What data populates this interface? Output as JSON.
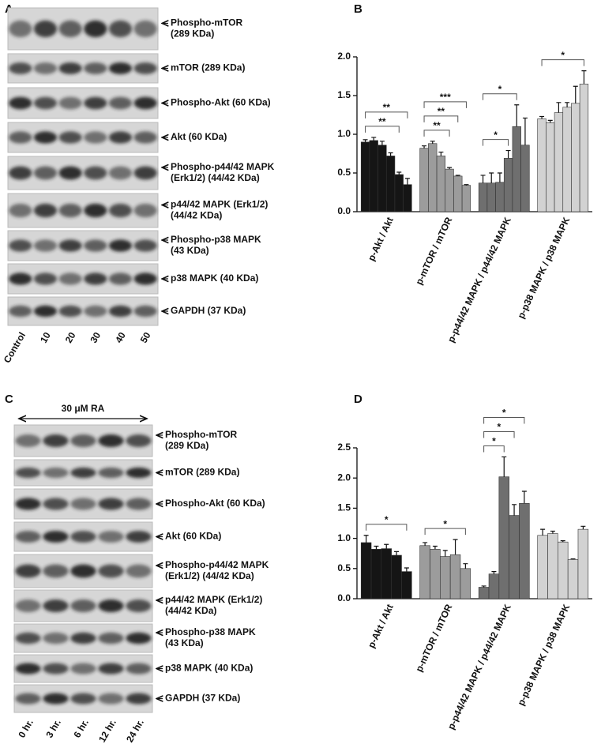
{
  "panels": {
    "a": "A",
    "b": "B",
    "c": "C",
    "d": "D"
  },
  "blot_a": {
    "labels": [
      [
        "Phospho-mTOR",
        "(289 KDa)"
      ],
      [
        "mTOR (289 KDa)"
      ],
      [
        "Phospho-Akt (60 KDa)"
      ],
      [
        "Akt (60 KDa)"
      ],
      [
        "Phospho-p44/42 MAPK",
        "(Erk1/2) (44/42 KDa)"
      ],
      [
        "p44/42 MAPK (Erk1/2)",
        "(44/42 KDa)"
      ],
      [
        "Phospho-p38 MAPK",
        "(43 KDa)"
      ],
      [
        "p38 MAPK (40 KDa)"
      ],
      [
        "GAPDH (37 KDa)"
      ]
    ],
    "lanes": [
      "Control",
      "10",
      "20",
      "30",
      "40",
      "50"
    ]
  },
  "blot_c": {
    "header": "30 μM RA",
    "labels": [
      [
        "Phospho-mTOR",
        "(289 KDa)"
      ],
      [
        "mTOR (289 KDa)"
      ],
      [
        "Phospho-Akt (60 KDa)"
      ],
      [
        "Akt (60 KDa)"
      ],
      [
        "Phospho-p44/42 MAPK",
        "(Erk1/2) (44/42 KDa)"
      ],
      [
        "p44/42 MAPK (Erk1/2)",
        "(44/42 KDa)"
      ],
      [
        "Phospho-p38 MAPK",
        "(43 KDa)"
      ],
      [
        "p38 MAPK (40 KDa)"
      ],
      [
        "GAPDH (37 KDa)"
      ]
    ],
    "lanes": [
      "0 hr.",
      "3 hr.",
      "6 hr.",
      "12 hr.",
      "24 hr."
    ]
  },
  "chart_data": [
    {
      "type": "bar",
      "categories": [
        "p-Akt / Akt",
        "p-mTOR / mTOR",
        "p-p44/42 MAPK / p44/42 MAPK",
        "p-p38 MAPK / p38 MAPK"
      ],
      "colors": [
        "#151515",
        "#9c9c9c",
        "#6f6f6f",
        "#d2d2d2"
      ],
      "values": [
        [
          0.9,
          0.92,
          0.86,
          0.72,
          0.48,
          0.35
        ],
        [
          0.82,
          0.88,
          0.72,
          0.55,
          0.46,
          0.34
        ],
        [
          0.37,
          0.37,
          0.38,
          0.69,
          1.1,
          0.86
        ],
        [
          1.2,
          1.15,
          1.28,
          1.35,
          1.4,
          1.65
        ]
      ],
      "errors": [
        [
          0.03,
          0.04,
          0.05,
          0.04,
          0.03,
          0.08
        ],
        [
          0.03,
          0.03,
          0.05,
          0.02,
          0.01,
          0.01
        ],
        [
          0.1,
          0.13,
          0.12,
          0.1,
          0.28,
          0.35
        ],
        [
          0.03,
          0.03,
          0.13,
          0.06,
          0.22,
          0.17
        ]
      ],
      "ylim": [
        0,
        2.0
      ],
      "yticks": [
        {
          "value": 0,
          "label": "0.0"
        },
        0.5,
        {
          "value": 1,
          "label": "1.0"
        },
        1.5,
        {
          "value": 2,
          "label": "2.0"
        }
      ],
      "brackets": [
        {
          "group": 0,
          "from": 0,
          "to": 4,
          "label": "**"
        },
        {
          "group": 0,
          "from": 0,
          "to": 5,
          "label": "**"
        },
        {
          "group": 1,
          "from": 0,
          "to": 3,
          "label": "**"
        },
        {
          "group": 1,
          "from": 0,
          "to": 4,
          "label": "**"
        },
        {
          "group": 1,
          "from": 0,
          "to": 5,
          "label": "***"
        },
        {
          "group": 2,
          "from": 0,
          "to": 3,
          "label": "*"
        },
        {
          "group": 2,
          "from": 0,
          "to": 4,
          "label": "*"
        },
        {
          "group": 3,
          "from": 0,
          "to": 5,
          "label": "*"
        }
      ]
    },
    {
      "type": "bar",
      "categories": [
        "p-Akt / Akt",
        "p-mTOR / mTOR",
        "p-p44/42 MAPK / p44/42 MAPK",
        "p-p38 MAPK / p38 MAPK"
      ],
      "colors": [
        "#151515",
        "#9c9c9c",
        "#6f6f6f",
        "#d2d2d2"
      ],
      "values": [
        [
          0.93,
          0.82,
          0.83,
          0.72,
          0.45
        ],
        [
          0.88,
          0.82,
          0.7,
          0.73,
          0.5
        ],
        [
          0.19,
          0.41,
          2.02,
          1.38,
          1.58
        ],
        [
          1.05,
          1.08,
          0.94,
          0.65,
          1.15
        ]
      ],
      "errors": [
        [
          0.12,
          0.05,
          0.07,
          0.06,
          0.06
        ],
        [
          0.05,
          0.05,
          0.1,
          0.25,
          0.08
        ],
        [
          0.02,
          0.04,
          0.33,
          0.18,
          0.2
        ],
        [
          0.1,
          0.04,
          0.02,
          0.01,
          0.05
        ]
      ],
      "ylim": [
        0,
        2.5
      ],
      "yticks": [
        {
          "value": 0,
          "label": "0.0"
        },
        0.5,
        {
          "value": 1,
          "label": "1.0"
        },
        1.5,
        {
          "value": 2,
          "label": "2.0"
        },
        2.5
      ],
      "brackets": [
        {
          "group": 0,
          "from": 0,
          "to": 4,
          "label": "*"
        },
        {
          "group": 1,
          "from": 0,
          "to": 4,
          "label": "*"
        },
        {
          "group": 2,
          "from": 0,
          "to": 2,
          "label": "*"
        },
        {
          "group": 2,
          "from": 0,
          "to": 3,
          "label": "*"
        },
        {
          "group": 2,
          "from": 0,
          "to": 4,
          "label": "*"
        }
      ]
    }
  ]
}
